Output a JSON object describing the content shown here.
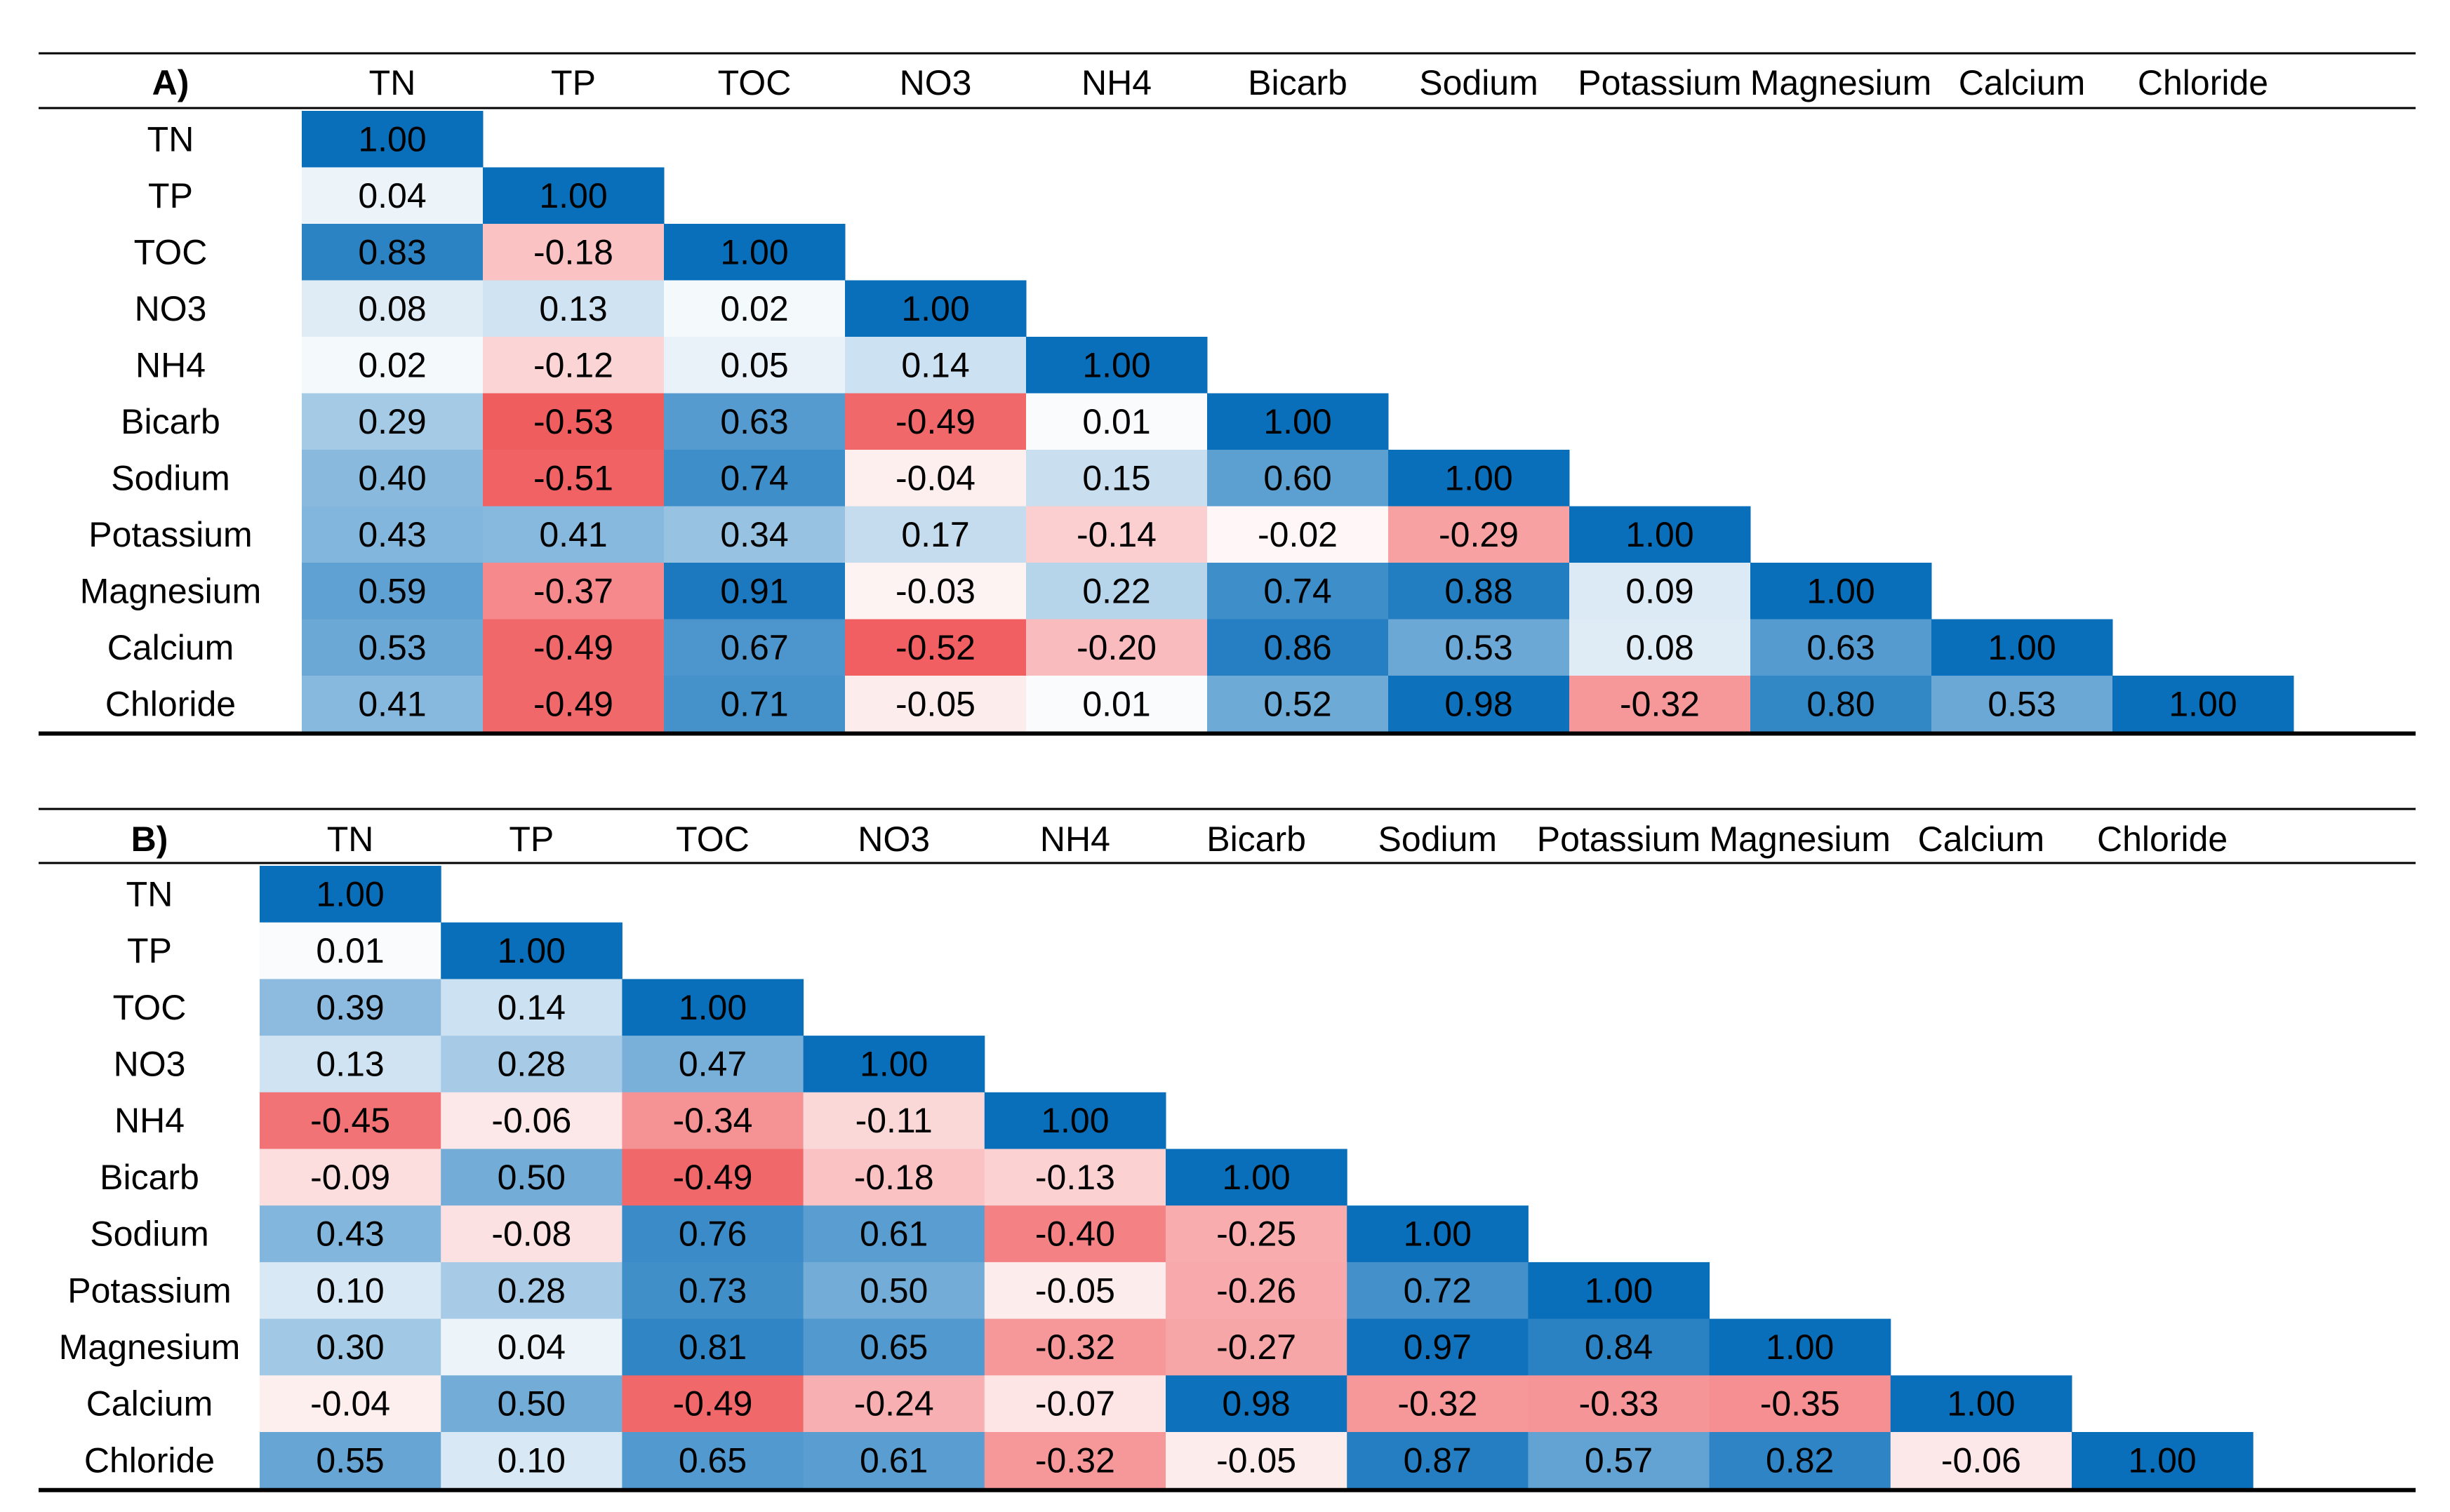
{
  "chart_data": [
    {
      "type": "heatmap",
      "panel": "A)",
      "labels": [
        "TN",
        "TP",
        "TOC",
        "NO3",
        "NH4",
        "Bicarb",
        "Sodium",
        "Potassium",
        "Magnesium",
        "Calcium",
        "Chloride"
      ],
      "values": [
        [
          1.0
        ],
        [
          0.04,
          1.0
        ],
        [
          0.83,
          -0.18,
          1.0
        ],
        [
          0.08,
          0.13,
          0.02,
          1.0
        ],
        [
          0.02,
          -0.12,
          0.05,
          0.14,
          1.0
        ],
        [
          0.29,
          -0.53,
          0.63,
          -0.49,
          0.01,
          1.0
        ],
        [
          0.4,
          -0.51,
          0.74,
          -0.04,
          0.15,
          0.6,
          1.0
        ],
        [
          0.43,
          0.41,
          0.34,
          0.17,
          -0.14,
          -0.02,
          -0.29,
          1.0
        ],
        [
          0.59,
          -0.37,
          0.91,
          -0.03,
          0.22,
          0.74,
          0.88,
          0.09,
          1.0
        ],
        [
          0.53,
          -0.49,
          0.67,
          -0.52,
          -0.2,
          0.86,
          0.53,
          0.08,
          0.63,
          1.0
        ],
        [
          0.41,
          -0.49,
          0.71,
          -0.05,
          0.01,
          0.52,
          0.98,
          -0.32,
          0.8,
          0.53,
          1.0
        ]
      ]
    },
    {
      "type": "heatmap",
      "panel": "B)",
      "labels": [
        "TN",
        "TP",
        "TOC",
        "NO3",
        "NH4",
        "Bicarb",
        "Sodium",
        "Potassium",
        "Magnesium",
        "Calcium",
        "Chloride"
      ],
      "values": [
        [
          1.0
        ],
        [
          0.01,
          1.0
        ],
        [
          0.39,
          0.14,
          1.0
        ],
        [
          0.13,
          0.28,
          0.47,
          1.0
        ],
        [
          -0.45,
          -0.06,
          -0.34,
          -0.11,
          1.0
        ],
        [
          -0.09,
          0.5,
          -0.49,
          -0.18,
          -0.13,
          1.0
        ],
        [
          0.43,
          -0.08,
          0.76,
          0.61,
          -0.4,
          -0.25,
          1.0
        ],
        [
          0.1,
          0.28,
          0.73,
          0.5,
          -0.05,
          -0.26,
          0.72,
          1.0
        ],
        [
          0.3,
          0.04,
          0.81,
          0.65,
          -0.32,
          -0.27,
          0.97,
          0.84,
          1.0
        ],
        [
          -0.04,
          0.5,
          -0.49,
          -0.24,
          -0.07,
          0.98,
          -0.32,
          -0.33,
          -0.35,
          1.0
        ],
        [
          0.55,
          0.1,
          0.65,
          0.61,
          -0.32,
          -0.05,
          0.87,
          0.57,
          0.82,
          -0.06,
          1.0
        ]
      ]
    }
  ],
  "colors": {
    "positive_max": "#0a6fba",
    "negative_max": "#f0575a",
    "neutral": "#ffffff",
    "text": "#000000",
    "rule": "#000000"
  }
}
